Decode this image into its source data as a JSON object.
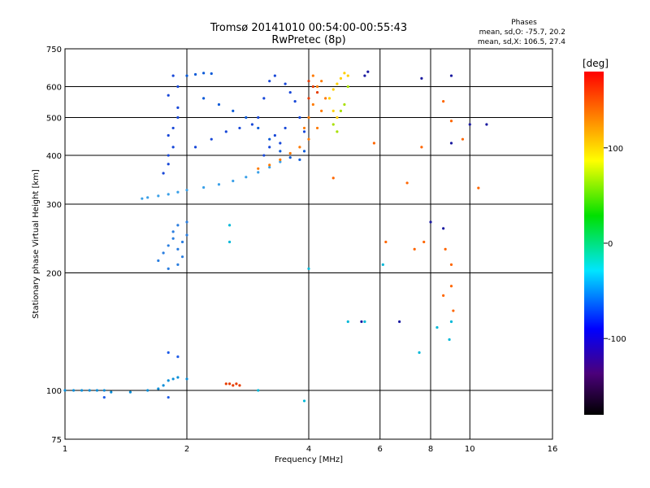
{
  "chart_data": {
    "type": "scatter",
    "title": "Tromsø 20141010 00:54:00-00:55:43",
    "subtitle": "RwPretec (8p)",
    "xlabel": "Frequency [MHz]",
    "ylabel": "Stationary phase Virtual Height [km]",
    "x_scale": "log",
    "y_scale": "log",
    "xlim": [
      1,
      16
    ],
    "ylim": [
      75,
      750
    ],
    "x_ticks": [
      1,
      2,
      4,
      6,
      8,
      10,
      16
    ],
    "y_ticks": [
      75,
      100,
      200,
      300,
      400,
      500,
      600,
      750
    ],
    "x_gridlines": [
      2,
      4,
      6,
      8,
      10
    ],
    "y_gridlines": [
      100,
      200,
      300,
      400,
      500,
      600
    ],
    "grid": true,
    "legend": {
      "heading": "Phases",
      "line1": "mean, sd,O: -75.7, 20.2",
      "line2": "mean, sd,X: 106.5, 27.4"
    },
    "colorbar": {
      "label": "[deg]",
      "range": [
        -180,
        180
      ],
      "ticks": [
        100,
        0,
        -100
      ]
    },
    "series": [
      {
        "color": "#0a8ed8",
        "points": [
          [
            1.0,
            100
          ],
          [
            1.05,
            100
          ],
          [
            1.1,
            100
          ],
          [
            1.15,
            100
          ],
          [
            1.2,
            100
          ],
          [
            1.25,
            100
          ],
          [
            1.3,
            99
          ],
          [
            1.45,
            99
          ],
          [
            1.6,
            100
          ],
          [
            1.7,
            101
          ],
          [
            1.75,
            103
          ],
          [
            1.8,
            106
          ],
          [
            1.85,
            107
          ],
          [
            1.9,
            108
          ],
          [
            2.0,
            107
          ]
        ]
      },
      {
        "color": "#1e5ce8",
        "points": [
          [
            1.25,
            96
          ],
          [
            1.8,
            96
          ],
          [
            1.8,
            125
          ],
          [
            1.9,
            122
          ]
        ]
      },
      {
        "color": "#3aa0e8",
        "points": [
          [
            1.55,
            310
          ],
          [
            1.6,
            312
          ],
          [
            1.7,
            315
          ],
          [
            1.8,
            318
          ],
          [
            1.9,
            322
          ],
          [
            2.0,
            326
          ],
          [
            2.2,
            331
          ],
          [
            2.4,
            337
          ],
          [
            2.6,
            344
          ],
          [
            2.8,
            352
          ],
          [
            3.0,
            362
          ],
          [
            3.2,
            373
          ],
          [
            3.4,
            385
          ]
        ]
      },
      {
        "color": "#2a7ee0",
        "points": [
          [
            1.7,
            215
          ],
          [
            1.75,
            225
          ],
          [
            1.8,
            235
          ],
          [
            1.85,
            245
          ],
          [
            1.9,
            230
          ],
          [
            1.95,
            220
          ],
          [
            1.8,
            205
          ],
          [
            1.9,
            210
          ],
          [
            1.85,
            255
          ],
          [
            1.9,
            265
          ],
          [
            2.0,
            270
          ],
          [
            2.0,
            250
          ],
          [
            1.95,
            240
          ]
        ]
      },
      {
        "color": "#1848d8",
        "points": [
          [
            1.75,
            360
          ],
          [
            1.8,
            380
          ],
          [
            1.8,
            400
          ],
          [
            1.85,
            420
          ],
          [
            1.8,
            450
          ],
          [
            1.85,
            470
          ],
          [
            1.9,
            500
          ],
          [
            1.9,
            530
          ],
          [
            1.8,
            570
          ],
          [
            1.9,
            600
          ],
          [
            1.85,
            640
          ],
          [
            2.1,
            420
          ],
          [
            2.3,
            440
          ],
          [
            2.5,
            460
          ],
          [
            2.7,
            470
          ],
          [
            2.9,
            480
          ],
          [
            3.0,
            500
          ],
          [
            3.1,
            560
          ],
          [
            3.2,
            620
          ],
          [
            3.3,
            640
          ],
          [
            3.5,
            610
          ],
          [
            3.6,
            580
          ],
          [
            3.7,
            550
          ],
          [
            3.5,
            470
          ],
          [
            3.3,
            450
          ],
          [
            3.2,
            420
          ],
          [
            3.1,
            400
          ],
          [
            3.4,
            430
          ],
          [
            3.8,
            500
          ],
          [
            3.9,
            460
          ]
        ]
      },
      {
        "color": "#0a5ad8",
        "points": [
          [
            2.0,
            640
          ],
          [
            2.1,
            645
          ],
          [
            2.2,
            650
          ],
          [
            2.3,
            648
          ],
          [
            2.2,
            560
          ],
          [
            2.4,
            540
          ],
          [
            2.6,
            520
          ],
          [
            2.8,
            500
          ],
          [
            3.0,
            470
          ],
          [
            3.2,
            440
          ],
          [
            3.4,
            410
          ],
          [
            3.6,
            395
          ],
          [
            3.8,
            390
          ],
          [
            3.9,
            410
          ]
        ]
      },
      {
        "color": "#ff7a00",
        "points": [
          [
            3.0,
            370
          ],
          [
            3.2,
            378
          ],
          [
            3.4,
            390
          ],
          [
            3.6,
            405
          ],
          [
            3.8,
            420
          ],
          [
            4.0,
            440
          ],
          [
            4.2,
            470
          ],
          [
            4.3,
            520
          ],
          [
            4.4,
            560
          ],
          [
            4.2,
            600
          ],
          [
            4.1,
            640
          ],
          [
            4.3,
            620
          ],
          [
            4.0,
            500
          ],
          [
            4.1,
            540
          ],
          [
            3.9,
            470
          ]
        ]
      },
      {
        "color": "#e63c00",
        "points": [
          [
            4.0,
            620
          ],
          [
            4.1,
            600
          ],
          [
            4.2,
            580
          ],
          [
            4.0,
            560
          ],
          [
            2.5,
            104
          ],
          [
            2.55,
            104
          ],
          [
            2.6,
            103
          ],
          [
            2.65,
            104
          ],
          [
            2.7,
            103
          ]
        ]
      },
      {
        "color": "#ffd000",
        "points": [
          [
            4.5,
            560
          ],
          [
            4.6,
            590
          ],
          [
            4.7,
            610
          ],
          [
            4.8,
            630
          ],
          [
            4.9,
            650
          ],
          [
            5.0,
            640
          ],
          [
            4.6,
            520
          ],
          [
            4.7,
            500
          ]
        ]
      },
      {
        "color": "#a8e000",
        "points": [
          [
            4.6,
            480
          ],
          [
            4.7,
            460
          ],
          [
            4.8,
            520
          ],
          [
            4.9,
            540
          ],
          [
            5.0,
            600
          ]
        ]
      },
      {
        "color": "#1a1aa0",
        "points": [
          [
            5.5,
            640
          ],
          [
            5.6,
            655
          ],
          [
            7.6,
            630
          ],
          [
            9.0,
            640
          ],
          [
            10.0,
            480
          ],
          [
            11.0,
            480
          ],
          [
            9.0,
            430
          ],
          [
            8.0,
            270
          ],
          [
            8.6,
            260
          ],
          [
            5.4,
            150
          ],
          [
            6.7,
            150
          ]
        ]
      },
      {
        "color": "#ff6600",
        "points": [
          [
            9.1,
            160
          ],
          [
            9.0,
            185
          ],
          [
            8.6,
            175
          ],
          [
            9.0,
            210
          ],
          [
            8.7,
            230
          ],
          [
            6.2,
            240
          ],
          [
            7.3,
            230
          ],
          [
            7.7,
            240
          ],
          [
            8.6,
            550
          ],
          [
            7.6,
            420
          ],
          [
            5.8,
            430
          ],
          [
            4.6,
            350
          ],
          [
            7.0,
            340
          ],
          [
            10.5,
            330
          ],
          [
            9.6,
            440
          ],
          [
            9.0,
            490
          ]
        ]
      },
      {
        "color": "#00b8d8",
        "points": [
          [
            5.0,
            150
          ],
          [
            5.5,
            150
          ],
          [
            6.1,
            210
          ],
          [
            4.0,
            205
          ],
          [
            3.0,
            100
          ],
          [
            3.9,
            94
          ],
          [
            8.3,
            145
          ],
          [
            8.9,
            135
          ],
          [
            7.5,
            125
          ],
          [
            9.0,
            150
          ],
          [
            2.55,
            265
          ],
          [
            2.55,
            240
          ]
        ]
      }
    ]
  }
}
